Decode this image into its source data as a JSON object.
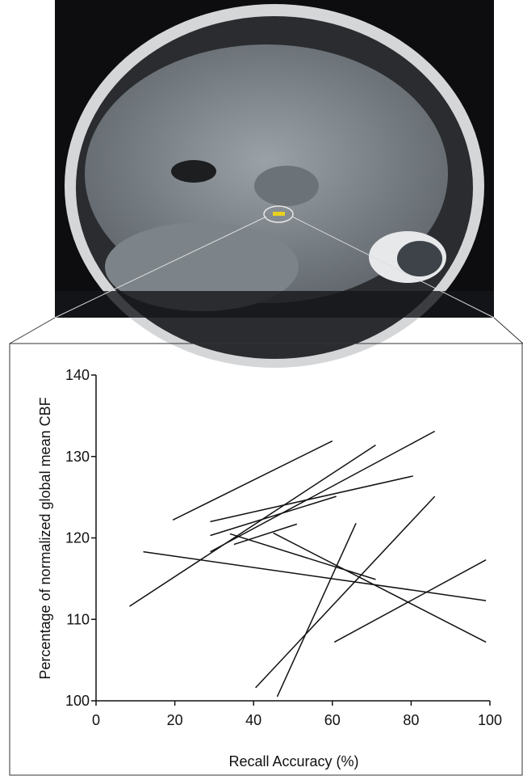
{
  "chart_data": {
    "type": "line",
    "x_label": "Recall Accuracy (%)",
    "y_label": "Percentage of normalized global mean CBF",
    "xlim": [
      0,
      100
    ],
    "xticks": [
      0,
      20,
      40,
      60,
      80,
      100
    ],
    "ylim": [
      100,
      140
    ],
    "yticks": [
      100,
      110,
      120,
      130,
      140
    ],
    "color": "#111111",
    "series": [
      {
        "x": [
          19.5,
          60
        ],
        "values": [
          122.2,
          131.9
        ]
      },
      {
        "x": [
          8.5,
          71
        ],
        "values": [
          111.6,
          131.4
        ]
      },
      {
        "x": [
          29,
          86
        ],
        "values": [
          118.3,
          133.1
        ]
      },
      {
        "x": [
          29,
          80.5
        ],
        "values": [
          122,
          127.6
        ]
      },
      {
        "x": [
          29,
          61
        ],
        "values": [
          120.3,
          125.1
        ]
      },
      {
        "x": [
          35,
          51
        ],
        "values": [
          119.2,
          121.7
        ]
      },
      {
        "x": [
          12,
          99
        ],
        "values": [
          118.3,
          112.3
        ]
      },
      {
        "x": [
          34,
          71
        ],
        "values": [
          120.5,
          114.9
        ]
      },
      {
        "x": [
          45,
          99
        ],
        "values": [
          120.6,
          107.2
        ]
      },
      {
        "x": [
          40.5,
          86
        ],
        "values": [
          101.6,
          125.1
        ]
      },
      {
        "x": [
          46,
          66
        ],
        "values": [
          100.5,
          121.8
        ]
      },
      {
        "x": [
          60.5,
          99
        ],
        "values": [
          107.2,
          117.3
        ]
      }
    ]
  }
}
